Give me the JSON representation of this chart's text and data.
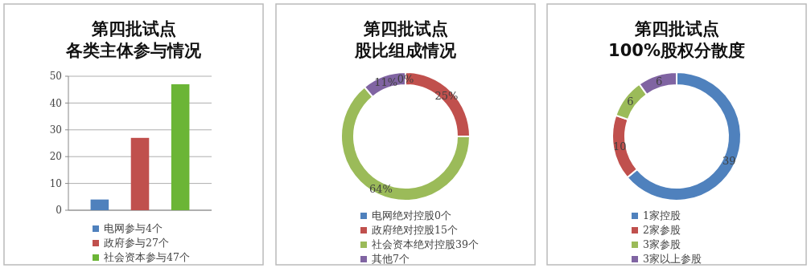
{
  "chart_data": [
    {
      "type": "bar",
      "title": "第四批试点",
      "subtitle": "各类主体参与情况",
      "categories": [
        null,
        null,
        null
      ],
      "stacked": true,
      "ylim": [
        0,
        50
      ],
      "yticks": [
        0,
        10,
        20,
        30,
        40,
        50
      ],
      "grid": "y",
      "legend": "bottom",
      "tick_labels": "y",
      "series": [
        {
          "name": "电网参与4个",
          "color": "#4f81bd",
          "values": [
            4,
            null,
            null
          ]
        },
        {
          "name": "政府参与27个",
          "color": "#c0504d",
          "values": [
            null,
            27,
            null
          ]
        },
        {
          "name": "社会资本参与47个",
          "color": "#6bb536",
          "values": [
            null,
            null,
            47
          ]
        }
      ]
    },
    {
      "type": "donut",
      "title": "第四批试点",
      "subtitle": "股比组成情况",
      "categories": [
        "电网绝对控股0个",
        "政府绝对控股15个",
        "社会资本绝对控股39个",
        "其他7个"
      ],
      "values": [
        0,
        25,
        64,
        11
      ],
      "value_labels": [
        "0%",
        "25%",
        "64%",
        "11%"
      ],
      "colors": [
        "#4f81bd",
        "#c0504d",
        "#9bbb59",
        "#8064a2"
      ],
      "legend": "bottom"
    },
    {
      "type": "donut",
      "title": "第四批试点",
      "subtitle": "100%股权分散度",
      "categories": [
        "1家控股",
        "2家参股",
        "3家参股",
        "3家以上参股"
      ],
      "values": [
        39,
        10,
        6,
        6
      ],
      "data_labels": true,
      "colors": [
        "#4f81bd",
        "#c0504d",
        "#9bbb59",
        "#8064a2"
      ],
      "legend": "bottom"
    }
  ]
}
